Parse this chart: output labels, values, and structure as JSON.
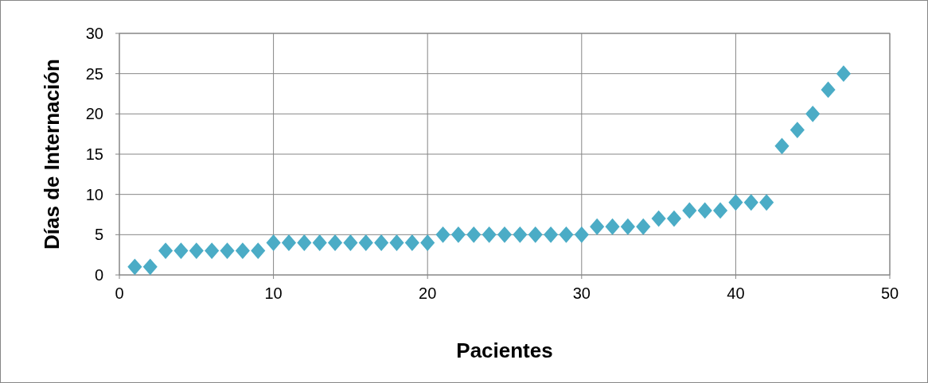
{
  "chart_data": {
    "type": "scatter",
    "xlabel": "Pacientes",
    "ylabel": "Días de Internación",
    "x": [
      1,
      2,
      3,
      4,
      5,
      6,
      7,
      8,
      9,
      10,
      11,
      12,
      13,
      14,
      15,
      16,
      17,
      18,
      19,
      20,
      21,
      22,
      23,
      24,
      25,
      26,
      27,
      28,
      29,
      30,
      31,
      32,
      33,
      34,
      35,
      36,
      37,
      38,
      39,
      40,
      41,
      42,
      43,
      44,
      45,
      46,
      47
    ],
    "series": [
      {
        "color": "#4bacc6",
        "values": [
          1,
          1,
          3,
          3,
          3,
          3,
          3,
          3,
          3,
          4,
          4,
          4,
          4,
          4,
          4,
          4,
          4,
          4,
          4,
          4,
          5,
          5,
          5,
          5,
          5,
          5,
          5,
          5,
          5,
          5,
          6,
          6,
          6,
          6,
          7,
          7,
          8,
          8,
          8,
          9,
          9,
          9,
          16,
          18,
          20,
          23,
          25
        ]
      }
    ],
    "xlim": [
      0,
      50
    ],
    "xticks": [
      0,
      10,
      20,
      30,
      40,
      50
    ],
    "ylim": [
      0,
      30
    ],
    "yticks": [
      0,
      5,
      10,
      15,
      20,
      25,
      30
    ],
    "grid": true,
    "marker": "diamond"
  }
}
